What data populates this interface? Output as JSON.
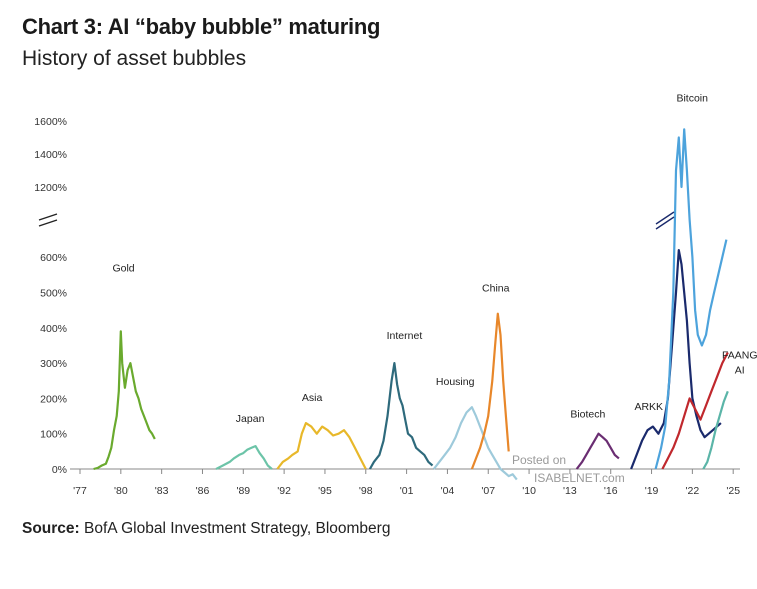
{
  "title": "Chart 3: AI “baby bubble” maturing",
  "subtitle": "History of asset bubbles",
  "source_label": "Source:",
  "source_text": " BofA Global Investment Strategy, Bloomberg",
  "watermark": {
    "line1": "Posted on",
    "line2": "ISABELNET.com"
  },
  "chart_data": {
    "type": "line",
    "title": "History of asset bubbles",
    "xlabel": "",
    "ylabel": "",
    "x_ticks": [
      "'77",
      "'80",
      "'83",
      "'86",
      "'89",
      "'92",
      "'95",
      "'98",
      "'01",
      "'04",
      "'07",
      "'10",
      "'13",
      "'16",
      "'19",
      "'22",
      "'25"
    ],
    "y_ticks": [
      "0%",
      "100%",
      "200%",
      "300%",
      "400%",
      "500%",
      "600%",
      "1200%",
      "1400%",
      "1600%"
    ],
    "y_axis_break": "between 600% and 1200%",
    "xlim": [
      1977,
      2025.5
    ],
    "ylim_lower": [
      0,
      650
    ],
    "ylim_upper": [
      1100,
      1600
    ],
    "grid": false,
    "legend": "none (series labelled directly on chart)",
    "series": [
      {
        "name": "Gold",
        "color": "#6aaa2e",
        "x": [
          1978.0,
          1978.3,
          1978.6,
          1978.9,
          1979.1,
          1979.3,
          1979.5,
          1979.7,
          1979.85,
          1980.0,
          1980.1,
          1980.3,
          1980.5,
          1980.7,
          1980.9,
          1981.1,
          1981.3,
          1981.5,
          1981.7,
          1981.9,
          1982.1,
          1982.3,
          1982.5
        ],
        "values": [
          0,
          3,
          10,
          15,
          35,
          60,
          110,
          150,
          220,
          390,
          300,
          230,
          280,
          300,
          260,
          220,
          200,
          170,
          150,
          130,
          110,
          100,
          85
        ]
      },
      {
        "name": "Japan",
        "color": "#6cc4a8",
        "x": [
          1987.0,
          1987.5,
          1988.0,
          1988.3,
          1988.7,
          1989.0,
          1989.3,
          1989.6,
          1989.9,
          1990.2,
          1990.5,
          1990.8,
          1991.1
        ],
        "values": [
          0,
          10,
          20,
          30,
          40,
          45,
          55,
          60,
          65,
          45,
          30,
          10,
          0
        ]
      },
      {
        "name": "Asia",
        "color": "#e8b82a",
        "x": [
          1991.5,
          1991.9,
          1992.3,
          1992.6,
          1993.0,
          1993.3,
          1993.6,
          1994.0,
          1994.4,
          1994.8,
          1995.2,
          1995.6,
          1996.0,
          1996.4,
          1996.8,
          1997.2,
          1997.6,
          1998.0
        ],
        "values": [
          0,
          20,
          30,
          40,
          50,
          100,
          130,
          120,
          100,
          120,
          110,
          95,
          100,
          110,
          90,
          60,
          30,
          0
        ]
      },
      {
        "name": "Internet",
        "color": "#2e6a7c",
        "x": [
          1998.3,
          1998.6,
          1999.0,
          1999.3,
          1999.6,
          1999.9,
          2000.1,
          2000.3,
          2000.5,
          2000.7,
          2000.9,
          2001.1,
          2001.4,
          2001.7,
          2002.0,
          2002.3,
          2002.6,
          2002.9
        ],
        "values": [
          0,
          20,
          40,
          80,
          150,
          250,
          300,
          240,
          200,
          180,
          140,
          100,
          90,
          60,
          50,
          40,
          20,
          10
        ]
      },
      {
        "name": "Housing",
        "color": "#9ecadb",
        "x": [
          2003.0,
          2003.4,
          2003.8,
          2004.2,
          2004.6,
          2005.0,
          2005.4,
          2005.8,
          2006.1,
          2006.4,
          2006.7,
          2007.0,
          2007.3,
          2007.6,
          2007.9,
          2008.2,
          2008.5,
          2008.8,
          2009.1
        ],
        "values": [
          0,
          20,
          40,
          60,
          90,
          130,
          160,
          175,
          150,
          120,
          90,
          60,
          40,
          20,
          0,
          -10,
          -20,
          -15,
          -30
        ]
      },
      {
        "name": "China",
        "color": "#e8872a",
        "x": [
          2005.8,
          2006.1,
          2006.4,
          2006.7,
          2007.0,
          2007.3,
          2007.5,
          2007.7,
          2007.9,
          2008.1,
          2008.3,
          2008.5
        ],
        "values": [
          0,
          30,
          60,
          100,
          150,
          250,
          350,
          440,
          380,
          250,
          150,
          50
        ]
      },
      {
        "name": "Biotech",
        "color": "#6a2d72",
        "x": [
          2013.5,
          2013.9,
          2014.2,
          2014.5,
          2014.8,
          2015.1,
          2015.4,
          2015.7,
          2016.0,
          2016.3,
          2016.6
        ],
        "values": [
          0,
          20,
          40,
          60,
          80,
          100,
          90,
          80,
          60,
          40,
          30
        ]
      },
      {
        "name": "ARKK",
        "color": "#1a2a6c",
        "x": [
          2017.5,
          2017.9,
          2018.3,
          2018.7,
          2019.1,
          2019.5,
          2019.9,
          2020.2,
          2020.5,
          2020.8,
          2021.0,
          2021.2,
          2021.4,
          2021.6,
          2021.8,
          2022.0,
          2022.3,
          2022.6,
          2022.9,
          2023.2,
          2023.5,
          2023.8,
          2024.1
        ],
        "values": [
          0,
          40,
          80,
          110,
          120,
          100,
          130,
          200,
          350,
          500,
          620,
          580,
          500,
          420,
          300,
          200,
          150,
          110,
          90,
          100,
          110,
          120,
          130
        ]
      },
      {
        "name": "Bitcoin",
        "color": "#4da3dc",
        "x": [
          2019.3,
          2019.7,
          2020.0,
          2020.3,
          2020.6,
          2020.8,
          2021.0,
          2021.2,
          2021.4,
          2021.6,
          2021.8,
          2022.0,
          2022.2,
          2022.4,
          2022.7,
          2023.0,
          2023.3,
          2023.6,
          2023.9,
          2024.2,
          2024.5
        ],
        "values": [
          0,
          60,
          120,
          250,
          500,
          1300,
          1500,
          1200,
          1550,
          1300,
          900,
          600,
          450,
          380,
          350,
          380,
          450,
          500,
          550,
          600,
          650
        ]
      },
      {
        "name": "FAANG",
        "color": "#c0282d",
        "x": [
          2019.8,
          2020.2,
          2020.6,
          2021.0,
          2021.4,
          2021.8,
          2022.2,
          2022.6,
          2023.0,
          2023.4,
          2023.8,
          2024.2,
          2024.6
        ],
        "values": [
          0,
          30,
          60,
          100,
          150,
          200,
          170,
          140,
          180,
          220,
          260,
          300,
          330
        ]
      },
      {
        "name": "AI",
        "color": "#5bb5a8",
        "x": [
          2022.8,
          2023.1,
          2023.4,
          2023.7,
          2024.0,
          2024.3,
          2024.6
        ],
        "values": [
          0,
          20,
          60,
          110,
          150,
          190,
          220
        ]
      }
    ],
    "colors": {
      "axis": "#888888",
      "text": "#1a1a1a"
    }
  }
}
